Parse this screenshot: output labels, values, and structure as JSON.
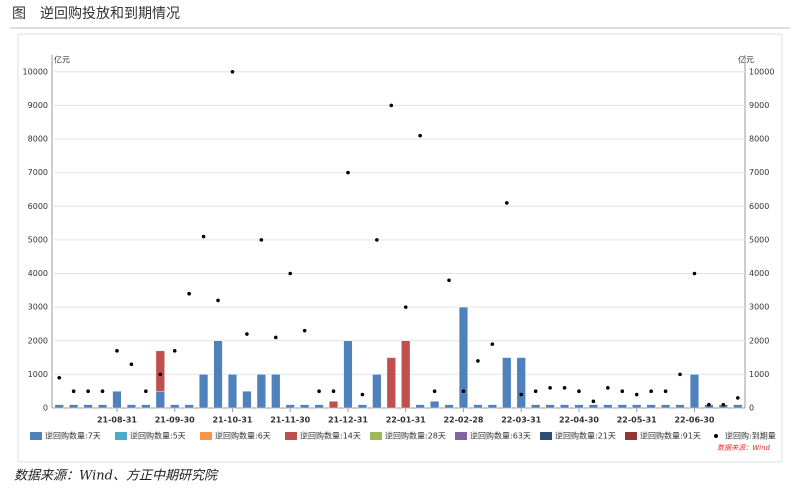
{
  "chart_data": {
    "type": "bar",
    "title": "图　逆回购投放和到期情况",
    "y_unit": "亿元",
    "source_note": "数据来源：Wind",
    "source": "数据来源：Wind、方正中期研究院",
    "categories": [
      null,
      null,
      null,
      null,
      "21-08-31",
      null,
      null,
      null,
      "21-09-30",
      null,
      null,
      null,
      "21-10-31",
      null,
      null,
      null,
      "21-11-30",
      null,
      null,
      null,
      "21-12-31",
      null,
      null,
      null,
      "22-01-31",
      null,
      null,
      null,
      "22-02-28",
      null,
      null,
      null,
      "22-03-31",
      null,
      null,
      null,
      "22-04-30",
      null,
      null,
      null,
      "22-05-31",
      null,
      null,
      null,
      "22-06-30",
      null,
      null,
      null
    ],
    "ylim": [
      0,
      10500
    ],
    "yticks": [
      0,
      1000,
      2000,
      3000,
      4000,
      5000,
      6000,
      7000,
      8000,
      9000,
      10000
    ],
    "grid": true,
    "series": [
      {
        "name": "逆回购数量:7天",
        "color": "#4f81bd",
        "values": [
          100,
          100,
          100,
          100,
          500,
          100,
          100,
          500,
          100,
          100,
          1000,
          2000,
          1000,
          500,
          1000,
          1000,
          100,
          100,
          100,
          0,
          2000,
          100,
          1000,
          0,
          0,
          100,
          200,
          100,
          3000,
          100,
          100,
          1500,
          1500,
          100,
          100,
          100,
          100,
          100,
          100,
          100,
          100,
          100,
          100,
          100,
          1000,
          100,
          100,
          100
        ]
      },
      {
        "name": "逆回购数量:5天",
        "color": "#4bacc6",
        "values": [
          0,
          0,
          0,
          0,
          0,
          0,
          0,
          0,
          0,
          0,
          0,
          0,
          0,
          0,
          0,
          0,
          0,
          0,
          0,
          0,
          0,
          0,
          0,
          0,
          0,
          0,
          0,
          0,
          0,
          0,
          0,
          0,
          0,
          0,
          0,
          0,
          0,
          0,
          0,
          0,
          0,
          0,
          0,
          0,
          0,
          0,
          0,
          0
        ]
      },
      {
        "name": "逆回购数量:6天",
        "color": "#f79646",
        "values": [
          0,
          0,
          0,
          0,
          0,
          0,
          0,
          0,
          0,
          0,
          0,
          0,
          0,
          0,
          0,
          0,
          0,
          0,
          0,
          0,
          0,
          0,
          0,
          0,
          0,
          0,
          0,
          0,
          0,
          0,
          0,
          0,
          0,
          0,
          0,
          0,
          0,
          0,
          0,
          0,
          0,
          0,
          0,
          0,
          0,
          0,
          0,
          0
        ]
      },
      {
        "name": "逆回购数量:14天",
        "color": "#c0504d",
        "values": [
          0,
          0,
          0,
          0,
          0,
          0,
          0,
          1200,
          0,
          0,
          0,
          0,
          0,
          0,
          0,
          0,
          0,
          0,
          0,
          200,
          0,
          0,
          0,
          1500,
          2000,
          0,
          0,
          0,
          0,
          0,
          0,
          0,
          0,
          0,
          0,
          0,
          0,
          0,
          0,
          0,
          0,
          0,
          0,
          0,
          0,
          0,
          0,
          0
        ]
      },
      {
        "name": "逆回购数量:28天",
        "color": "#9bbb59",
        "values": [
          0,
          0,
          0,
          0,
          0,
          0,
          0,
          0,
          0,
          0,
          0,
          0,
          0,
          0,
          0,
          0,
          0,
          0,
          0,
          0,
          0,
          0,
          0,
          0,
          0,
          0,
          0,
          0,
          0,
          0,
          0,
          0,
          0,
          0,
          0,
          0,
          0,
          0,
          0,
          0,
          0,
          0,
          0,
          0,
          0,
          0,
          0,
          0
        ]
      },
      {
        "name": "逆回购数量:63天",
        "color": "#8064a2",
        "values": [
          0,
          0,
          0,
          0,
          0,
          0,
          0,
          0,
          0,
          0,
          0,
          0,
          0,
          0,
          0,
          0,
          0,
          0,
          0,
          0,
          0,
          0,
          0,
          0,
          0,
          0,
          0,
          0,
          0,
          0,
          0,
          0,
          0,
          0,
          0,
          0,
          0,
          0,
          0,
          0,
          0,
          0,
          0,
          0,
          0,
          0,
          0,
          0
        ]
      },
      {
        "name": "逆回购数量:21天",
        "color": "#2c4d75",
        "values": [
          0,
          0,
          0,
          0,
          0,
          0,
          0,
          0,
          0,
          0,
          0,
          0,
          0,
          0,
          0,
          0,
          0,
          0,
          0,
          0,
          0,
          0,
          0,
          0,
          0,
          0,
          0,
          0,
          0,
          0,
          0,
          0,
          0,
          0,
          0,
          0,
          0,
          0,
          0,
          0,
          0,
          0,
          0,
          0,
          0,
          0,
          0,
          0
        ]
      },
      {
        "name": "逆回购数量:91天",
        "color": "#953735",
        "values": [
          0,
          0,
          0,
          0,
          0,
          0,
          0,
          0,
          0,
          0,
          0,
          0,
          0,
          0,
          0,
          0,
          0,
          0,
          0,
          0,
          0,
          0,
          0,
          0,
          0,
          0,
          0,
          0,
          0,
          0,
          0,
          0,
          0,
          0,
          0,
          0,
          0,
          0,
          0,
          0,
          0,
          0,
          0,
          0,
          0,
          0,
          0,
          0
        ]
      },
      {
        "name": "逆回购:到期量",
        "color": "#000000",
        "type": "scatter",
        "values": [
          900,
          500,
          500,
          500,
          1700,
          1300,
          500,
          1000,
          1700,
          3400,
          5100,
          3200,
          10000,
          2200,
          5000,
          2100,
          4000,
          2300,
          500,
          500,
          7000,
          400,
          5000,
          9000,
          3000,
          8100,
          500,
          3800,
          500,
          1400,
          1900,
          6100,
          400,
          500,
          600,
          600,
          500,
          200,
          600,
          500,
          400,
          500,
          500,
          1000,
          4000,
          100,
          100,
          300
        ]
      }
    ]
  }
}
